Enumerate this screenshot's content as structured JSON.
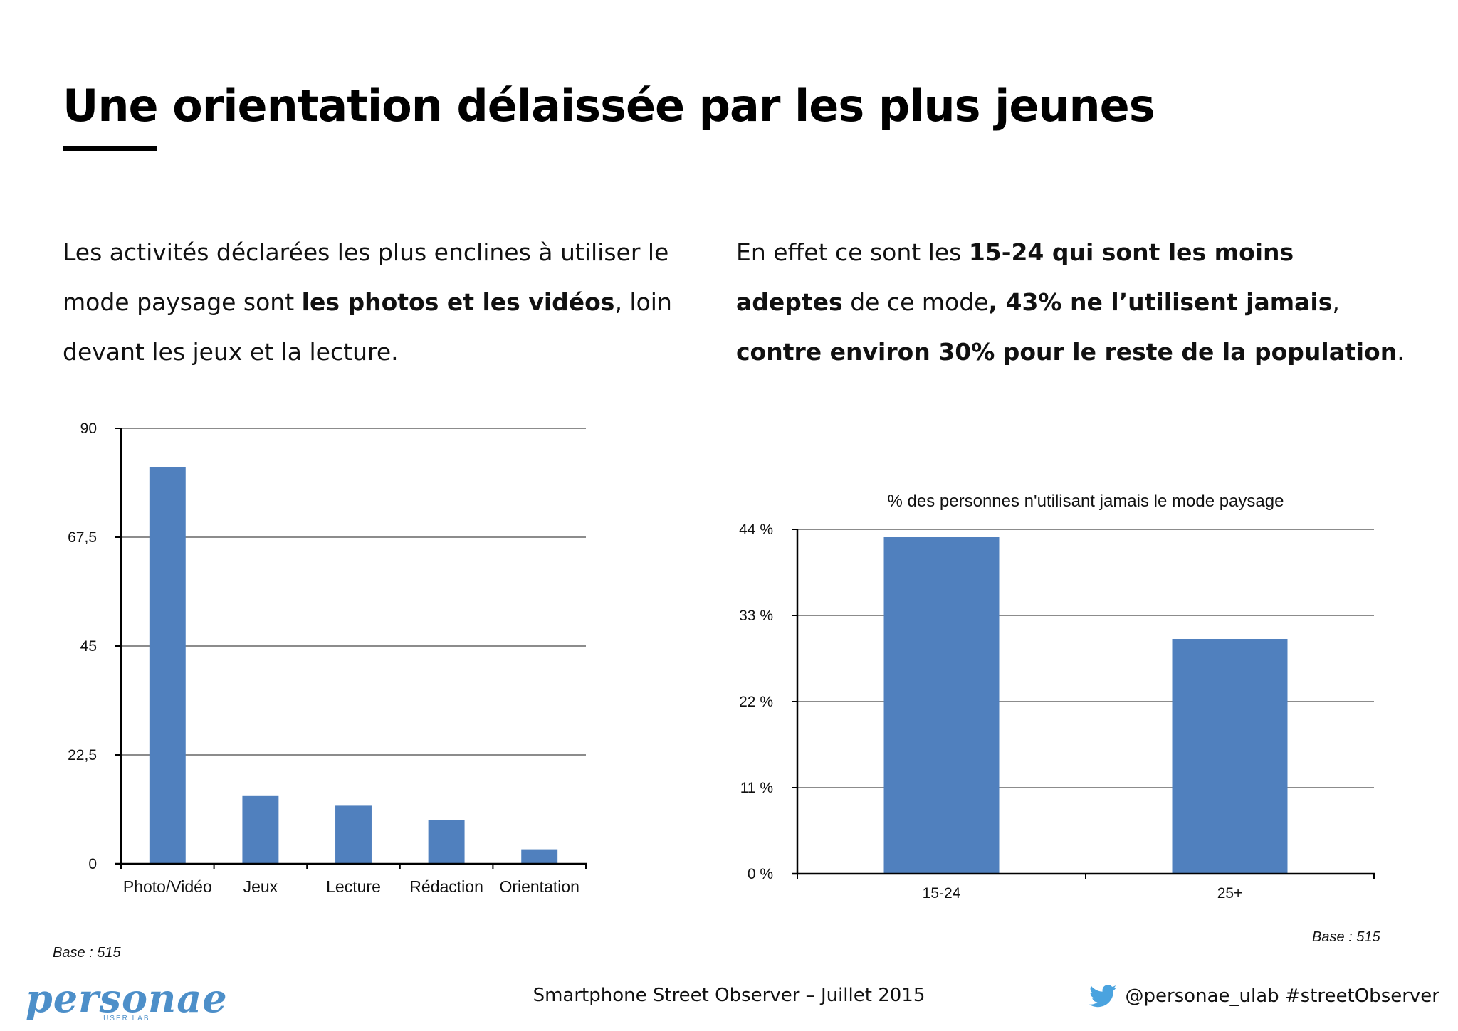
{
  "slide": {
    "title": "Une orientation délaissée par les plus jeunes"
  },
  "left_text": {
    "p1": "Les activités déclarées les plus enclines à utiliser le mode paysage sont ",
    "p1_bold": "les photos et les vidéos",
    "p2": ", loin devant les jeux et la lecture."
  },
  "right_text": {
    "p1": "En effet ce sont les ",
    "p1_bold": "15-24 qui sont les moins adeptes",
    "p2": " de ce mode",
    "p2_bold": ", 43% ne l’utilisent jamais",
    "p3": ", ",
    "p3_bold": "contre environ 30% pour le reste de la population",
    "p4": "."
  },
  "notes": {
    "base_left": "Base : 515",
    "base_right": "Base : 515"
  },
  "footer": {
    "center": "Smartphone Street Observer – Juillet 2015",
    "right": "@personae_ulab #streetObserver",
    "logo_word": "personae",
    "logo_sub": "USER LAB"
  },
  "colors": {
    "bar": "#5080be",
    "grid": "#8c8c8c",
    "axis": "#000000"
  },
  "icons": {
    "twitter": "twitter-bird-icon"
  },
  "chart_data": [
    {
      "type": "bar",
      "title": "",
      "categories": [
        "Photo/Vidéo",
        "Jeux",
        "Lecture",
        "Rédaction",
        "Orientation"
      ],
      "values": [
        82,
        14,
        12,
        9,
        3
      ],
      "ylim": [
        0,
        90
      ],
      "yticks": [
        0,
        22.5,
        45,
        67.5,
        90
      ],
      "ytick_labels": [
        "0",
        "22,5",
        "45",
        "67,5",
        "90"
      ],
      "xlabel": "",
      "ylabel": "",
      "grid": true
    },
    {
      "type": "bar",
      "title": "% des personnes n'utilisant jamais le mode paysage",
      "categories": [
        "15-24",
        "25+"
      ],
      "values": [
        43,
        30
      ],
      "ylim": [
        0,
        44
      ],
      "yticks": [
        0,
        11,
        22,
        33,
        44
      ],
      "ytick_labels": [
        "0 %",
        "11 %",
        "22 %",
        "33 %",
        "44 %"
      ],
      "xlabel": "",
      "ylabel": "",
      "grid": true
    }
  ]
}
